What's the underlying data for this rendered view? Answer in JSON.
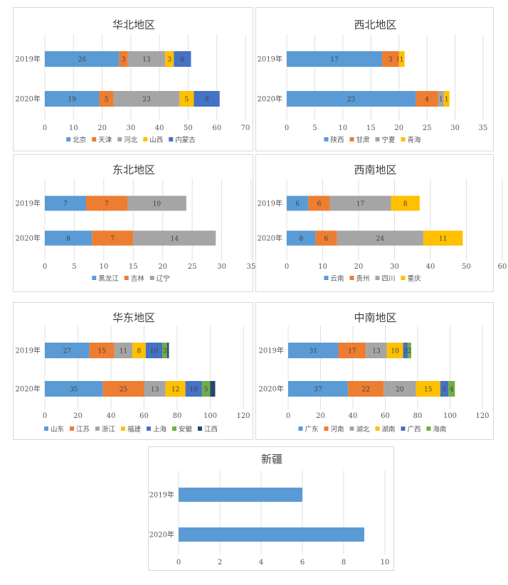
{
  "legend_colors": [
    "#5b9bd5",
    "#ed7d31",
    "#a5a5a5",
    "#ffc000",
    "#4472c4",
    "#70ad47",
    "#264478"
  ],
  "chart_data": [
    {
      "type": "bar",
      "orientation": "horizontal",
      "stacked": true,
      "title": "华北地区",
      "categories": [
        "2019年",
        "2020年"
      ],
      "xlim": [
        0,
        70
      ],
      "xticks": [
        0,
        10,
        20,
        30,
        40,
        50,
        60,
        70
      ],
      "series": [
        {
          "name": "北京",
          "values": [
            26,
            19
          ]
        },
        {
          "name": "天津",
          "values": [
            3,
            5
          ]
        },
        {
          "name": "河北",
          "values": [
            13,
            23
          ]
        },
        {
          "name": "山西",
          "values": [
            3,
            5
          ]
        },
        {
          "name": "内蒙古",
          "values": [
            6,
            9
          ]
        }
      ],
      "legend": "bottom",
      "grid": true
    },
    {
      "type": "bar",
      "orientation": "horizontal",
      "stacked": true,
      "title": "西北地区",
      "categories": [
        "2019年",
        "2020年"
      ],
      "xlim": [
        0,
        35
      ],
      "xticks": [
        0,
        5,
        10,
        15,
        20,
        25,
        30,
        35
      ],
      "series": [
        {
          "name": "陕西",
          "values": [
            17,
            23
          ]
        },
        {
          "name": "甘肃",
          "values": [
            3,
            4
          ]
        },
        {
          "name": "宁夏",
          "values": [
            0,
            1
          ]
        },
        {
          "name": "青海",
          "values": [
            1,
            1
          ]
        }
      ],
      "legend": "bottom",
      "grid": true
    },
    {
      "type": "bar",
      "orientation": "horizontal",
      "stacked": true,
      "title": "东北地区",
      "categories": [
        "2019年",
        "2020年"
      ],
      "xlim": [
        0,
        35
      ],
      "xticks": [
        0,
        5,
        10,
        15,
        20,
        25,
        30,
        35
      ],
      "series": [
        {
          "name": "黑龙江",
          "values": [
            7,
            8
          ]
        },
        {
          "name": "吉林",
          "values": [
            7,
            7
          ]
        },
        {
          "name": "辽宁",
          "values": [
            10,
            14
          ]
        }
      ],
      "legend": "bottom",
      "grid": true
    },
    {
      "type": "bar",
      "orientation": "horizontal",
      "stacked": true,
      "title": "西南地区",
      "categories": [
        "2019年",
        "2020年"
      ],
      "xlim": [
        0,
        60
      ],
      "xticks": [
        0,
        10,
        20,
        30,
        40,
        50,
        60
      ],
      "series": [
        {
          "name": "云南",
          "values": [
            6,
            8
          ]
        },
        {
          "name": "贵州",
          "values": [
            6,
            6
          ]
        },
        {
          "name": "四川",
          "values": [
            17,
            24
          ]
        },
        {
          "name": "重庆",
          "values": [
            8,
            11
          ]
        }
      ],
      "legend": "bottom",
      "grid": true
    },
    {
      "type": "bar",
      "orientation": "horizontal",
      "stacked": true,
      "title": "华东地区",
      "categories": [
        "2019年",
        "2020年"
      ],
      "xlim": [
        0,
        120
      ],
      "xticks": [
        0,
        20,
        40,
        60,
        80,
        100,
        120
      ],
      "series": [
        {
          "name": "山东",
          "values": [
            27,
            35
          ]
        },
        {
          "name": "江苏",
          "values": [
            15,
            25
          ]
        },
        {
          "name": "浙江",
          "values": [
            11,
            13
          ]
        },
        {
          "name": "福建",
          "values": [
            8,
            12
          ]
        },
        {
          "name": "上海",
          "values": [
            10,
            10
          ]
        },
        {
          "name": "安徽",
          "values": [
            3,
            5
          ]
        },
        {
          "name": "江西",
          "values": [
            1,
            3
          ]
        }
      ],
      "legend": "bottom",
      "grid": true
    },
    {
      "type": "bar",
      "orientation": "horizontal",
      "stacked": true,
      "title": "中南地区",
      "categories": [
        "2019年",
        "2020年"
      ],
      "xlim": [
        0,
        120
      ],
      "xticks": [
        0,
        20,
        40,
        60,
        80,
        100,
        120
      ],
      "series": [
        {
          "name": "广东",
          "values": [
            31,
            37
          ]
        },
        {
          "name": "河南",
          "values": [
            17,
            22
          ]
        },
        {
          "name": "湖北",
          "values": [
            13,
            20
          ]
        },
        {
          "name": "湖南",
          "values": [
            10,
            15
          ]
        },
        {
          "name": "广西",
          "values": [
            3,
            5
          ]
        },
        {
          "name": "海南",
          "values": [
            2,
            4
          ]
        }
      ],
      "legend": "bottom",
      "grid": true
    },
    {
      "type": "bar",
      "orientation": "horizontal",
      "stacked": false,
      "title": "新疆",
      "categories": [
        "2019年",
        "2020年"
      ],
      "xlim": [
        0,
        10
      ],
      "xticks": [
        0,
        2,
        4,
        6,
        8,
        10
      ],
      "series": [
        {
          "values": [
            6,
            9
          ]
        }
      ],
      "legend": "none",
      "grid": true,
      "show_data_labels": false
    }
  ]
}
